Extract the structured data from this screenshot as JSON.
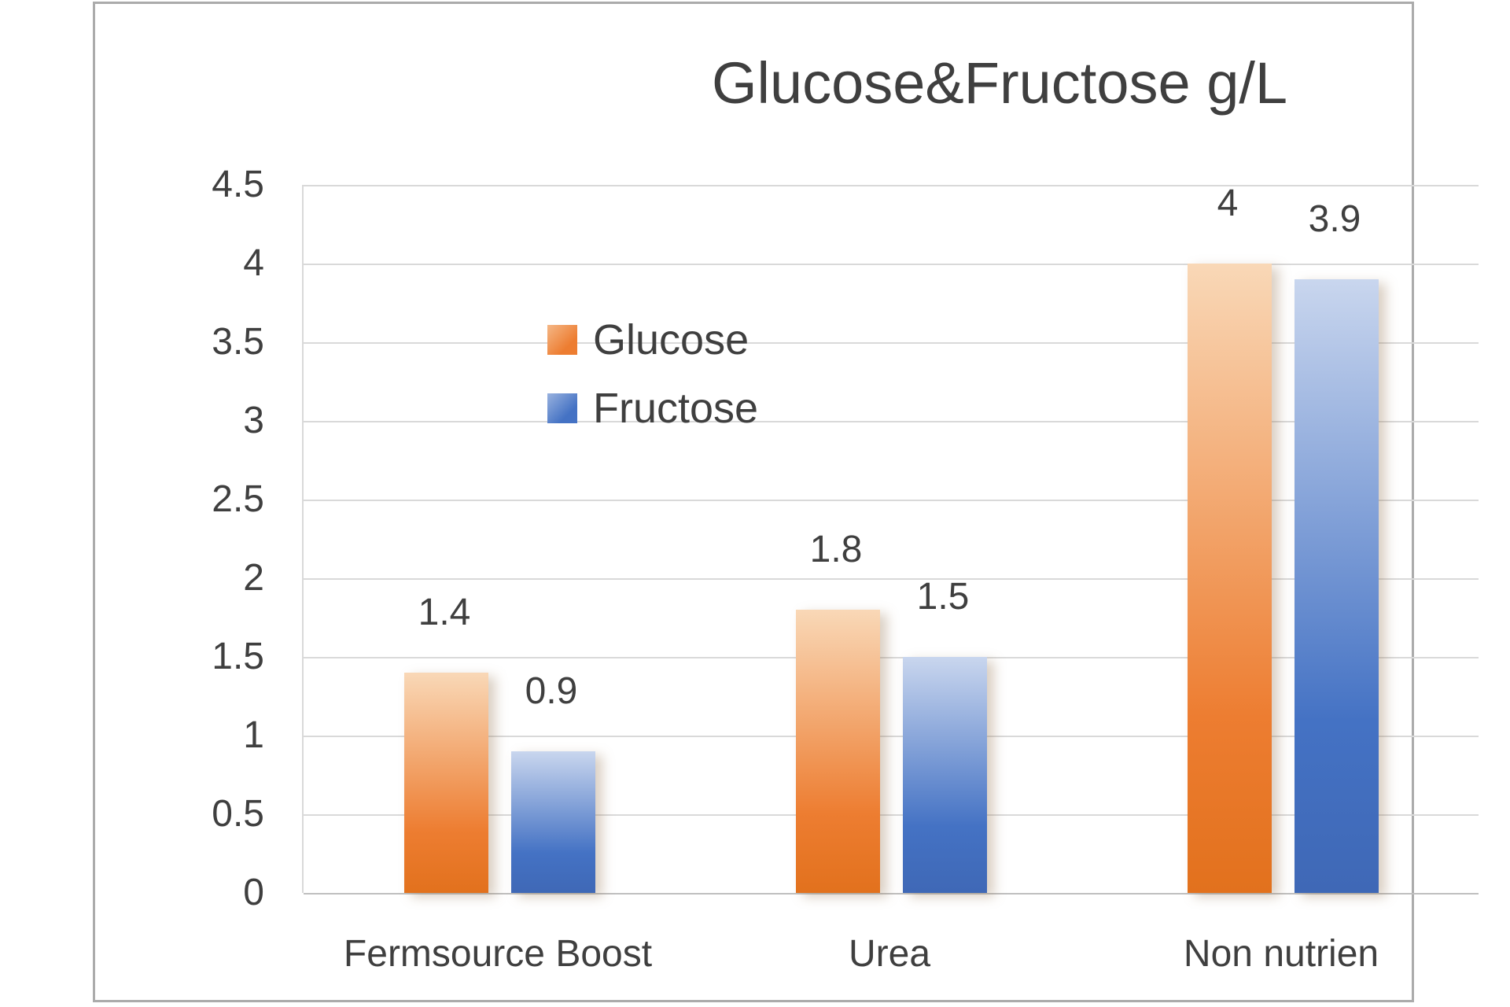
{
  "chart_data": {
    "type": "bar",
    "title": "Glucose&Fructose g/L",
    "categories": [
      "Fermsource Boost",
      "Urea",
      "Non nutrien"
    ],
    "series": [
      {
        "name": "Glucose",
        "values": [
          1.4,
          1.8,
          4
        ],
        "value_labels": [
          "1.4",
          "1.8",
          "4"
        ],
        "color": "#ED7D31",
        "gradient_top": "#F9D8B7",
        "gradient_bottom": "#E2711D"
      },
      {
        "name": "Fructose",
        "values": [
          0.9,
          1.5,
          3.9
        ],
        "value_labels": [
          "0.9",
          "1.5",
          "3.9"
        ],
        "color": "#4472C4",
        "gradient_top": "#C9D6EE",
        "gradient_bottom": "#3F68B6"
      }
    ],
    "xlabel": "",
    "ylabel": "",
    "ylim": [
      0,
      4.5
    ],
    "ytick_step": 0.5,
    "ytick_labels": [
      "0",
      "0.5",
      "1",
      "1.5",
      "2",
      "2.5",
      "3",
      "3.5",
      "4",
      "4.5"
    ],
    "grid": "horizontal",
    "gridline_color": "#D9D9D9",
    "axis_text_color": "#3F3F3F",
    "legend_position": "inside-left",
    "data_labels_shown": true
  }
}
